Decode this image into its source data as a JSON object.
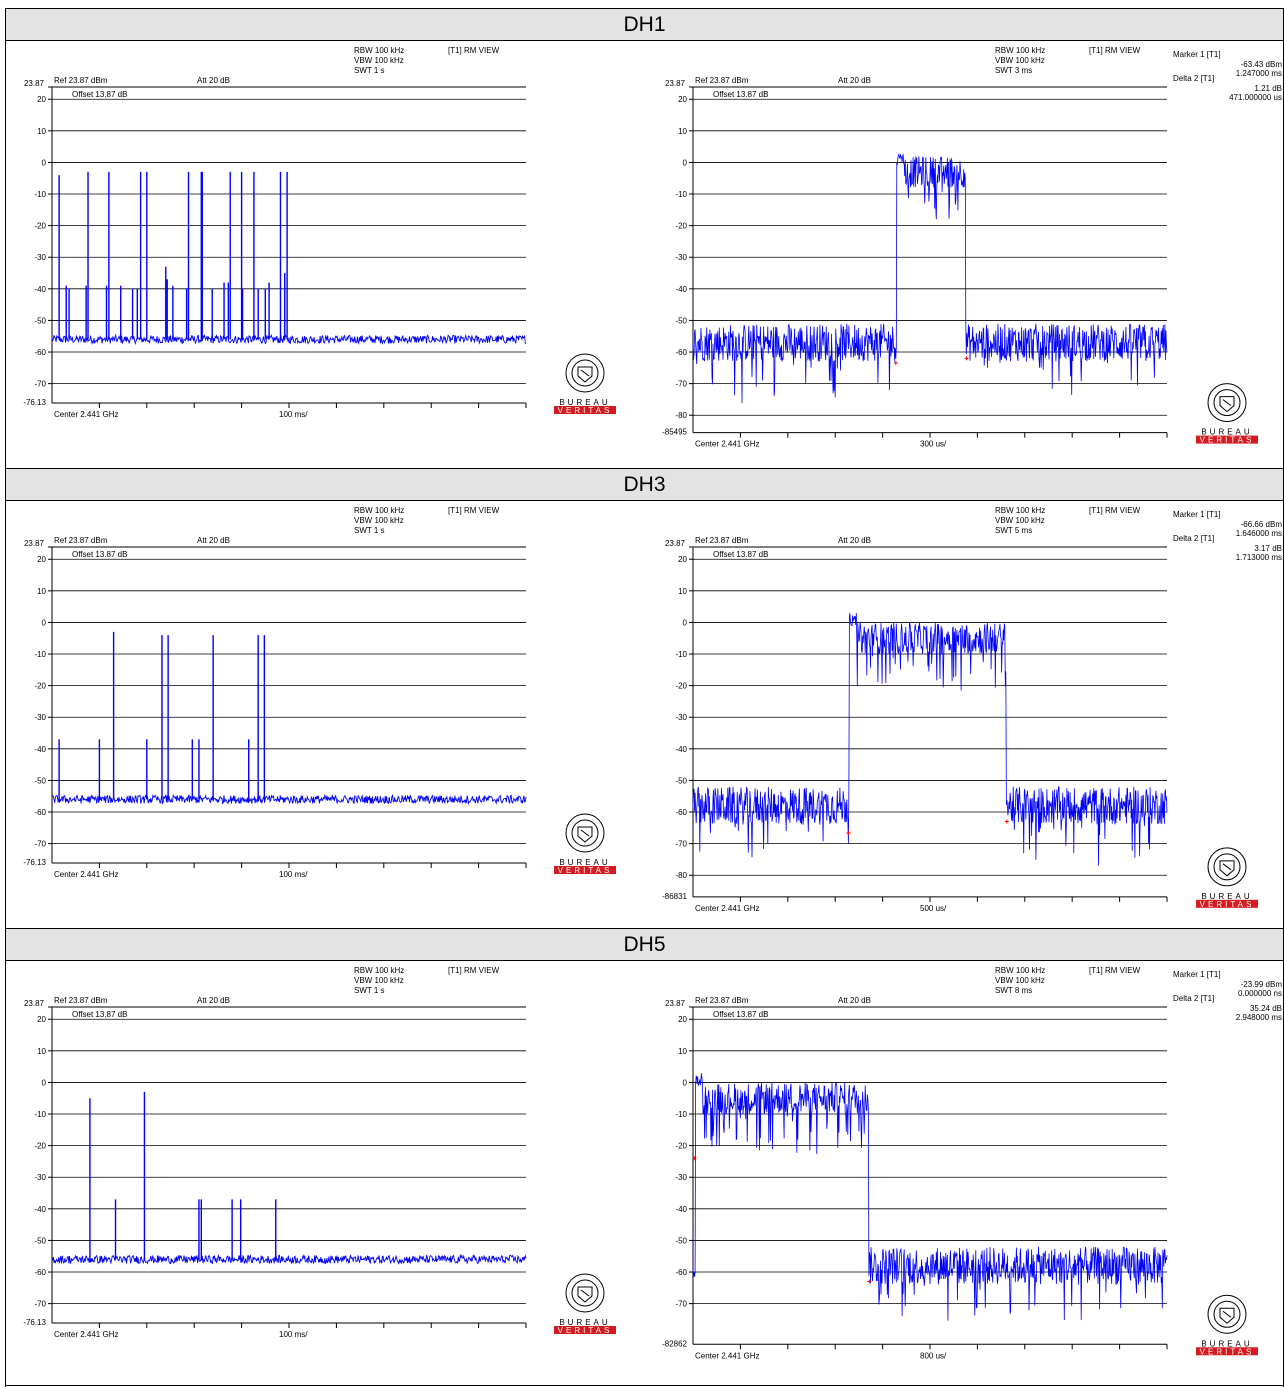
{
  "sections": [
    {
      "title": "DH1",
      "left": {
        "info": {
          "rbw": "RBW 100 kHz",
          "vbw": "VBW 100 kHz",
          "swt": "SWT 1 s",
          "mode": "[T1] RM VIEW"
        },
        "ref": "Ref 23.87 dBm",
        "att": "Att  20 dB",
        "offset": "Offset 13.87 dB",
        "ytop": "23.87",
        "ybottom": "-76.13",
        "yticks": [
          "20",
          "10",
          "0",
          "-10",
          "-20",
          "-30",
          "-40",
          "-50",
          "-60",
          "-70"
        ],
        "center": "Center 2.441 GHz",
        "span": "100 ms/",
        "markers": []
      },
      "right": {
        "info": {
          "rbw": "RBW 100 kHz",
          "vbw": "VBW 100 kHz",
          "swt": "SWT 3 ms",
          "mode": "[T1] RM VIEW"
        },
        "ref": "Ref 23.87 dBm",
        "att": "Att  20 dB",
        "offset": "Offset 13.87 dB",
        "ytop": "23.87",
        "ybottom": "-85495",
        "yticks": [
          "20",
          "10",
          "0",
          "-10",
          "-20",
          "-30",
          "-40",
          "-50",
          "-60",
          "-70",
          "-80"
        ],
        "center": "Center 2.441 GHz",
        "span": "300 us/",
        "markers": [
          {
            "label": "Marker 1 [T1]",
            "v1": "-63.43 dBm",
            "v2": "1.247000 ms"
          },
          {
            "label": "Delta 2 [T1]",
            "v1": "1.21 dB",
            "v2": "471.000000 us"
          }
        ]
      }
    },
    {
      "title": "DH3",
      "left": {
        "info": {
          "rbw": "RBW 100 kHz",
          "vbw": "VBW 100 kHz",
          "swt": "SWT 1 s",
          "mode": "[T1] RM VIEW"
        },
        "ref": "Ref 23.87 dBm",
        "att": "Att  20 dB",
        "offset": "Offset 13.87 dB",
        "ytop": "23.87",
        "ybottom": "-76.13",
        "yticks": [
          "20",
          "10",
          "0",
          "-10",
          "-20",
          "-30",
          "-40",
          "-50",
          "-60",
          "-70"
        ],
        "center": "Center 2.441 GHz",
        "span": "100 ms/",
        "markers": []
      },
      "right": {
        "info": {
          "rbw": "RBW 100 kHz",
          "vbw": "VBW 100 kHz",
          "swt": "SWT 5 ms",
          "mode": "[T1] RM VIEW"
        },
        "ref": "Ref 23.87 dBm",
        "att": "Att  20 dB",
        "offset": "Offset 13.87 dB",
        "ytop": "23.87",
        "ybottom": "-86831",
        "yticks": [
          "20",
          "10",
          "0",
          "-10",
          "-20",
          "-30",
          "-40",
          "-50",
          "-60",
          "-70",
          "-80"
        ],
        "center": "Center 2.441 GHz",
        "span": "500 us/",
        "markers": [
          {
            "label": "Marker 1 [T1]",
            "v1": "-66.66 dBm",
            "v2": "1.646000 ms"
          },
          {
            "label": "Delta 2 [T1]",
            "v1": "3.17 dB",
            "v2": "1.713000 ms"
          }
        ]
      }
    },
    {
      "title": "DH5",
      "left": {
        "info": {
          "rbw": "RBW 100 kHz",
          "vbw": "VBW 100 kHz",
          "swt": "SWT 1 s",
          "mode": "[T1] RM VIEW"
        },
        "ref": "Ref 23.87 dBm",
        "att": "Att  20 dB",
        "offset": "Offset 13.87 dB",
        "ytop": "23.87",
        "ybottom": "-76.13",
        "yticks": [
          "20",
          "10",
          "0",
          "-10",
          "-20",
          "-30",
          "-40",
          "-50",
          "-60",
          "-70"
        ],
        "center": "Center 2.441 GHz",
        "span": "100 ms/",
        "markers": []
      },
      "right": {
        "info": {
          "rbw": "RBW 100 kHz",
          "vbw": "VBW 100 kHz",
          "swt": "SWT 8 ms",
          "mode": "[T1] RM VIEW"
        },
        "ref": "Ref 23.87 dBm",
        "att": "Att  20 dB",
        "offset": "Offset 13.87 dB",
        "ytop": "23.87",
        "ybottom": "-82862",
        "yticks": [
          "20",
          "10",
          "0",
          "-10",
          "-20",
          "-30",
          "-40",
          "-50",
          "-60",
          "-70"
        ],
        "center": "Center 2.441 GHz",
        "span": "800 us/",
        "markers": [
          {
            "label": "Marker 1 [T1]",
            "v1": "-23.99 dBm",
            "v2": "0.000000 ns"
          },
          {
            "label": "Delta 2 [T1]",
            "v1": "35.24 dB",
            "v2": "2.948000 ms"
          }
        ]
      }
    }
  ],
  "logo": {
    "top": "BUREAU",
    "bottom": "VERITAS",
    "ring": "BUREAU VERITAS",
    "year": "1828"
  },
  "colors": {
    "trace": "#0000ff",
    "marker": "#ff0000",
    "logo_red": "#d71920",
    "header_bg": "#e3e3e3"
  },
  "chart_data": [
    {
      "type": "line",
      "title": "DH1",
      "xlabel": "Center 2.441 GHz",
      "span": "100 ms/",
      "ylim": [
        -76.13,
        23.87
      ],
      "noise_floor_dBm": -56,
      "pulses_x_div": [
        0.15,
        0.3,
        0.36,
        0.72,
        0.76,
        1.15,
        1.2,
        1.45,
        1.7,
        1.8,
        1.87,
        2.0,
        2.4,
        2.43,
        2.55,
        2.84,
        2.88,
        3.15,
        3.17,
        3.38,
        3.63,
        3.72,
        3.76,
        4.0,
        4.02,
        4.26,
        4.35,
        4.5,
        4.58,
        4.82,
        4.91,
        4.96
      ],
      "pulses_peak_dBm": [
        -4,
        -39,
        -40,
        -39,
        -3,
        -39,
        -3,
        -39,
        -40,
        -40,
        -3,
        -3,
        -33,
        -37,
        -39,
        -40,
        -3,
        -3,
        -3,
        -40,
        -38,
        -38,
        -3,
        -3,
        -40,
        -3,
        -40,
        -40,
        -38,
        -3,
        -35,
        -3
      ]
    },
    {
      "type": "line",
      "title": "DH1",
      "xlabel": "Center 2.441 GHz",
      "span": "300 us/",
      "ylim": [
        -85.495,
        23.87
      ],
      "noise_floor_dBm": -57,
      "burst": {
        "start_div": 4.3,
        "end_div": 5.75,
        "level_dBm": -5,
        "peak_dBm": 3
      },
      "markers_dBm": [
        -63.43,
        -62.22
      ]
    },
    {
      "type": "line",
      "title": "DH3",
      "xlabel": "Center 2.441 GHz",
      "span": "100 ms/",
      "ylim": [
        -76.13,
        23.87
      ],
      "noise_floor_dBm": -56,
      "pulses_x_div": [
        0.15,
        1.0,
        1.3,
        2.0,
        2.32,
        2.45,
        2.96,
        3.1,
        3.4,
        4.15,
        4.35,
        4.48
      ],
      "pulses_peak_dBm": [
        -37,
        -37,
        -3,
        -37,
        -4,
        -4,
        -37,
        -37,
        -4,
        -37,
        -4,
        -4
      ]
    },
    {
      "type": "line",
      "title": "DH3",
      "xlabel": "Center 2.441 GHz",
      "span": "500 us/",
      "ylim": [
        -86.831,
        23.87
      ],
      "noise_floor_dBm": -58,
      "burst": {
        "start_div": 3.3,
        "end_div": 6.6,
        "level_dBm": -7,
        "peak_dBm": 3
      },
      "markers_dBm": [
        -66.66,
        -63.49
      ]
    },
    {
      "type": "line",
      "title": "DH5",
      "xlabel": "Center 2.441 GHz",
      "span": "100 ms/",
      "ylim": [
        -76.13,
        23.87
      ],
      "noise_floor_dBm": -56,
      "pulses_x_div": [
        0.8,
        1.34,
        1.95,
        3.1,
        3.15,
        3.8,
        3.98,
        4.72
      ],
      "pulses_peak_dBm": [
        -5,
        -37,
        -3,
        -37,
        -37,
        -37,
        -37,
        -37
      ]
    },
    {
      "type": "line",
      "title": "DH5",
      "xlabel": "Center 2.441 GHz",
      "span": "800 us/",
      "ylim": [
        -82.862,
        23.87
      ],
      "noise_floor_dBm": -58,
      "burst": {
        "start_div": 0.05,
        "end_div": 3.7,
        "level_dBm": -7,
        "peak_dBm": 3
      },
      "markers_dBm": [
        -23.99,
        11.25
      ]
    }
  ]
}
